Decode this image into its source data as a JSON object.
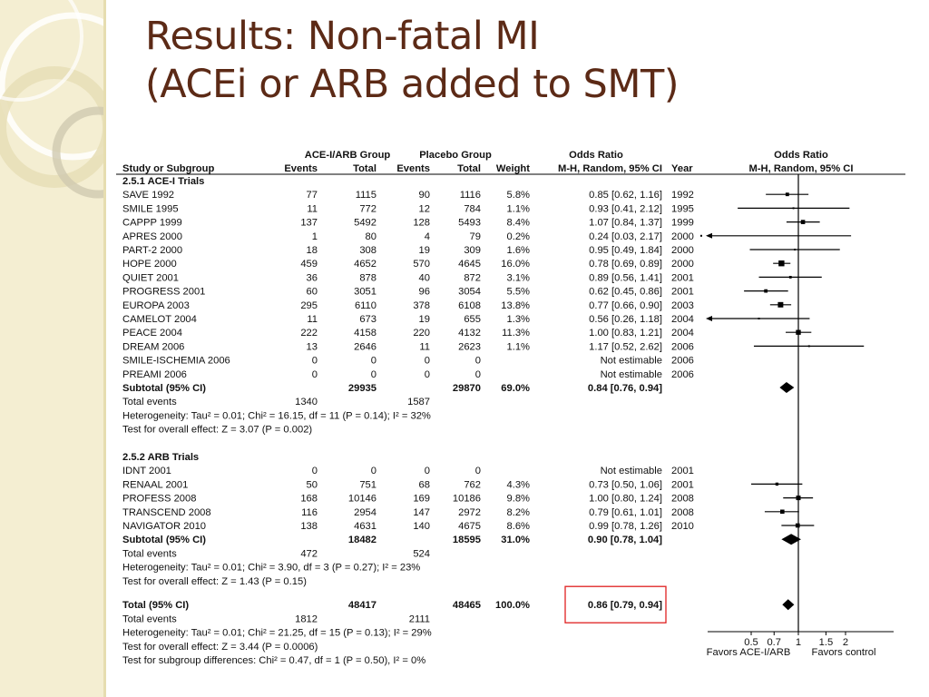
{
  "slide": {
    "title_line1": "Results: Non-fatal MI",
    "title_line2": "(ACEi or ARB added to SMT)"
  },
  "colors": {
    "title": "#5c2a16",
    "sidebar": "#f4eed2",
    "highlight_box": "#e02020"
  },
  "table": {
    "group_headers": {
      "treatment": "ACE-I/ARB Group",
      "control": "Placebo Group",
      "odds_ratio": "Odds Ratio",
      "plot_title": "Odds Ratio"
    },
    "col_headers": {
      "study": "Study or Subgroup",
      "events1": "Events",
      "total1": "Total",
      "events2": "Events",
      "total2": "Total",
      "weight": "Weight",
      "method": "M-H, Random, 95% CI",
      "year": "Year",
      "plot_method": "M-H, Random, 95% CI"
    },
    "sections": [
      {
        "title": "2.5.1 ACE-I Trials",
        "rows": [
          {
            "study": "SAVE 1992",
            "e1": "77",
            "t1": "1115",
            "e2": "90",
            "t2": "1116",
            "w": "5.8%",
            "ci": "0.85 [0.62, 1.16]",
            "year": "1992",
            "or": 0.85,
            "lo": 0.62,
            "hi": 1.16,
            "wt": 5.8
          },
          {
            "study": "SMILE 1995",
            "e1": "11",
            "t1": "772",
            "e2": "12",
            "t2": "784",
            "w": "1.1%",
            "ci": "0.93 [0.41, 2.12]",
            "year": "1995",
            "or": 0.93,
            "lo": 0.41,
            "hi": 2.12,
            "wt": 1.1
          },
          {
            "study": "CAPPP 1999",
            "e1": "137",
            "t1": "5492",
            "e2": "128",
            "t2": "5493",
            "w": "8.4%",
            "ci": "1.07 [0.84, 1.37]",
            "year": "1999",
            "or": 1.07,
            "lo": 0.84,
            "hi": 1.37,
            "wt": 8.4
          },
          {
            "study": "APRES 2000",
            "e1": "1",
            "t1": "80",
            "e2": "4",
            "t2": "79",
            "w": "0.2%",
            "ci": "0.24 [0.03, 2.17]",
            "year": "2000",
            "or": 0.24,
            "lo": 0.03,
            "hi": 2.17,
            "wt": 0.2
          },
          {
            "study": "PART-2 2000",
            "e1": "18",
            "t1": "308",
            "e2": "19",
            "t2": "309",
            "w": "1.6%",
            "ci": "0.95 [0.49, 1.84]",
            "year": "2000",
            "or": 0.95,
            "lo": 0.49,
            "hi": 1.84,
            "wt": 1.6
          },
          {
            "study": "HOPE 2000",
            "e1": "459",
            "t1": "4652",
            "e2": "570",
            "t2": "4645",
            "w": "16.0%",
            "ci": "0.78 [0.69, 0.89]",
            "year": "2000",
            "or": 0.78,
            "lo": 0.69,
            "hi": 0.89,
            "wt": 16.0
          },
          {
            "study": "QUIET 2001",
            "e1": "36",
            "t1": "878",
            "e2": "40",
            "t2": "872",
            "w": "3.1%",
            "ci": "0.89 [0.56, 1.41]",
            "year": "2001",
            "or": 0.89,
            "lo": 0.56,
            "hi": 1.41,
            "wt": 3.1
          },
          {
            "study": "PROGRESS 2001",
            "e1": "60",
            "t1": "3051",
            "e2": "96",
            "t2": "3054",
            "w": "5.5%",
            "ci": "0.62 [0.45, 0.86]",
            "year": "2001",
            "or": 0.62,
            "lo": 0.45,
            "hi": 0.86,
            "wt": 5.5
          },
          {
            "study": "EUROPA 2003",
            "e1": "295",
            "t1": "6110",
            "e2": "378",
            "t2": "6108",
            "w": "13.8%",
            "ci": "0.77 [0.66, 0.90]",
            "year": "2003",
            "or": 0.77,
            "lo": 0.66,
            "hi": 0.9,
            "wt": 13.8
          },
          {
            "study": "CAMELOT 2004",
            "e1": "11",
            "t1": "673",
            "e2": "19",
            "t2": "655",
            "w": "1.3%",
            "ci": "0.56 [0.26, 1.18]",
            "year": "2004",
            "or": 0.56,
            "lo": 0.26,
            "hi": 1.18,
            "wt": 1.3
          },
          {
            "study": "PEACE 2004",
            "e1": "222",
            "t1": "4158",
            "e2": "220",
            "t2": "4132",
            "w": "11.3%",
            "ci": "1.00 [0.83, 1.21]",
            "year": "2004",
            "or": 1.0,
            "lo": 0.83,
            "hi": 1.21,
            "wt": 11.3
          },
          {
            "study": "DREAM 2006",
            "e1": "13",
            "t1": "2646",
            "e2": "11",
            "t2": "2623",
            "w": "1.1%",
            "ci": "1.17 [0.52, 2.62]",
            "year": "2006",
            "or": 1.17,
            "lo": 0.52,
            "hi": 2.62,
            "wt": 1.1
          },
          {
            "study": "SMILE-ISCHEMIA 2006",
            "e1": "0",
            "t1": "0",
            "e2": "0",
            "t2": "0",
            "w": "",
            "ci": "Not estimable",
            "year": "2006",
            "or": null,
            "lo": null,
            "hi": null,
            "wt": 0
          },
          {
            "study": "PREAMI 2006",
            "e1": "0",
            "t1": "0",
            "e2": "0",
            "t2": "0",
            "w": "",
            "ci": "Not estimable",
            "year": "2006",
            "or": null,
            "lo": null,
            "hi": null,
            "wt": 0
          }
        ],
        "subtotal": {
          "label": "Subtotal (95% CI)",
          "t1": "29935",
          "t2": "29870",
          "w": "69.0%",
          "ci": "0.84 [0.76, 0.94]",
          "or": 0.84,
          "lo": 0.76,
          "hi": 0.94
        },
        "total_events": {
          "label": "Total events",
          "e1": "1340",
          "e2": "1587"
        },
        "heterogeneity": "Heterogeneity: Tau² = 0.01; Chi² = 16.15, df = 11 (P = 0.14); I² = 32%",
        "overall_effect": "Test for overall effect: Z = 3.07 (P = 0.002)"
      },
      {
        "title": "2.5.2 ARB Trials",
        "rows": [
          {
            "study": "IDNT 2001",
            "e1": "0",
            "t1": "0",
            "e2": "0",
            "t2": "0",
            "w": "",
            "ci": "Not estimable",
            "year": "2001",
            "or": null,
            "lo": null,
            "hi": null,
            "wt": 0
          },
          {
            "study": "RENAAL 2001",
            "e1": "50",
            "t1": "751",
            "e2": "68",
            "t2": "762",
            "w": "4.3%",
            "ci": "0.73 [0.50, 1.06]",
            "year": "2001",
            "or": 0.73,
            "lo": 0.5,
            "hi": 1.06,
            "wt": 4.3
          },
          {
            "study": "PROFESS 2008",
            "e1": "168",
            "t1": "10146",
            "e2": "169",
            "t2": "10186",
            "w": "9.8%",
            "ci": "1.00 [0.80, 1.24]",
            "year": "2008",
            "or": 1.0,
            "lo": 0.8,
            "hi": 1.24,
            "wt": 9.8
          },
          {
            "study": "TRANSCEND 2008",
            "e1": "116",
            "t1": "2954",
            "e2": "147",
            "t2": "2972",
            "w": "8.2%",
            "ci": "0.79 [0.61, 1.01]",
            "year": "2008",
            "or": 0.79,
            "lo": 0.61,
            "hi": 1.01,
            "wt": 8.2
          },
          {
            "study": "NAVIGATOR 2010",
            "e1": "138",
            "t1": "4631",
            "e2": "140",
            "t2": "4675",
            "w": "8.6%",
            "ci": "0.99 [0.78, 1.26]",
            "year": "2010",
            "or": 0.99,
            "lo": 0.78,
            "hi": 1.26,
            "wt": 8.6
          }
        ],
        "subtotal": {
          "label": "Subtotal (95% CI)",
          "t1": "18482",
          "t2": "18595",
          "w": "31.0%",
          "ci": "0.90 [0.78, 1.04]",
          "or": 0.9,
          "lo": 0.78,
          "hi": 1.04
        },
        "total_events": {
          "label": "Total events",
          "e1": "472",
          "e2": "524"
        },
        "heterogeneity": "Heterogeneity: Tau² = 0.01; Chi² = 3.90, df = 3 (P = 0.27); I² = 23%",
        "overall_effect": "Test for overall effect: Z = 1.43 (P = 0.15)"
      }
    ],
    "total": {
      "label": "Total (95% CI)",
      "t1": "48417",
      "t2": "48465",
      "w": "100.0%",
      "ci": "0.86 [0.79, 0.94]",
      "or": 0.86,
      "lo": 0.79,
      "hi": 0.94
    },
    "total_events": {
      "label": "Total events",
      "e1": "1812",
      "e2": "2111"
    },
    "heterogeneity": "Heterogeneity: Tau² = 0.01; Chi² = 21.25, df = 15 (P = 0.13); I² = 29%",
    "overall_effect": "Test for overall effect: Z = 3.44 (P = 0.0006)",
    "subgroup_test": "Test for subgroup differences: Chi² = 0.47, df = 1 (P = 0.50), I² = 0%",
    "plot": {
      "ticks": [
        {
          "v": 0.5,
          "label": "0.5"
        },
        {
          "v": 0.7,
          "label": "0.7"
        },
        {
          "v": 1,
          "label": "1"
        },
        {
          "v": 1.5,
          "label": "1.5"
        },
        {
          "v": 2,
          "label": "2"
        }
      ],
      "favors_left": "Favors ACE-I/ARB",
      "favors_right": "Favors control",
      "x_min": 0.2,
      "x_max": 5,
      "log_scale": true
    }
  }
}
